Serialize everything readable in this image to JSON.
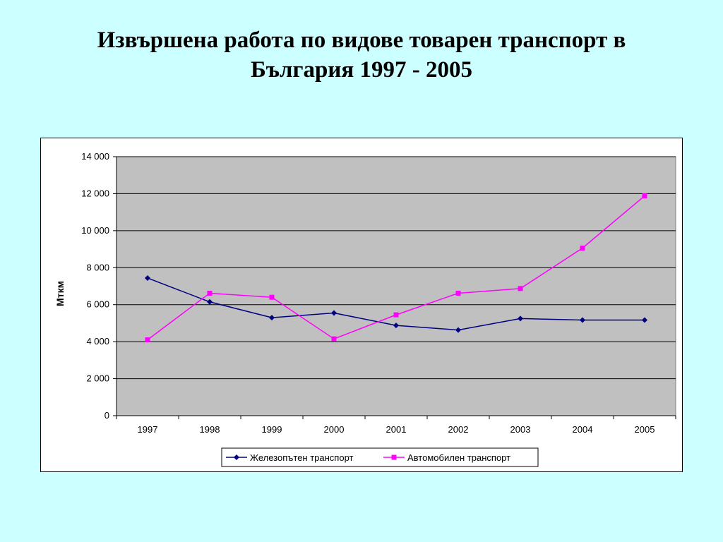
{
  "slide": {
    "title_line1": "Извършена работа по видове товарен транспорт в",
    "title_line2": "България 1997 - 2005"
  },
  "chart_data": {
    "type": "line",
    "title": "",
    "xlabel": "",
    "ylabel": "Мткм",
    "x": [
      "1997",
      "1998",
      "1999",
      "2000",
      "2001",
      "2002",
      "2003",
      "2004",
      "2005"
    ],
    "ylim": [
      0,
      14000
    ],
    "yticks": [
      0,
      2000,
      4000,
      6000,
      8000,
      10000,
      12000,
      14000
    ],
    "ytick_labels": [
      "0",
      "2 000",
      "4 000",
      "6 000",
      "8 000",
      "10 000",
      "12 000",
      "14 000"
    ],
    "grid": true,
    "plot_background": "#c0c0c0",
    "legend_position": "bottom",
    "series": [
      {
        "name": "Железопътен транспорт",
        "color": "#000080",
        "marker": "diamond",
        "values": [
          7440,
          6150,
          5300,
          5550,
          4880,
          4630,
          5250,
          5170,
          5170
        ]
      },
      {
        "name": "Автомобилен транспорт",
        "color": "#ff00ff",
        "marker": "square",
        "values": [
          4100,
          6620,
          6400,
          4150,
          5450,
          6620,
          6870,
          9060,
          11880
        ]
      }
    ]
  }
}
